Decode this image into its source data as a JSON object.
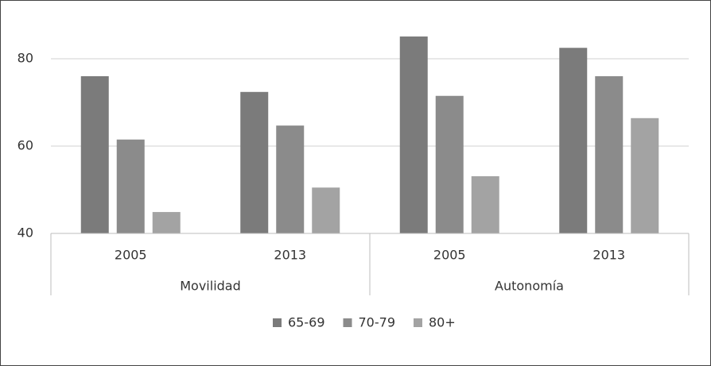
{
  "chart_data": {
    "type": "bar",
    "categories": [
      "2005",
      "2013",
      "2005",
      "2013"
    ],
    "groups": [
      "Movilidad",
      "Autonomía"
    ],
    "series": [
      {
        "name": "65-69",
        "color": "#7b7b7b",
        "values": [
          76.0,
          72.4,
          85.1,
          82.5
        ]
      },
      {
        "name": "70-79",
        "color": "#8b8b8b",
        "values": [
          61.5,
          64.7,
          71.5,
          76.0
        ]
      },
      {
        "name": "80+",
        "color": "#a3a3a3",
        "values": [
          44.9,
          50.5,
          53.1,
          66.4
        ]
      }
    ],
    "ylim": [
      40,
      90
    ],
    "yticks": [
      40,
      60,
      80
    ],
    "grid": true,
    "legend": "bottom"
  }
}
